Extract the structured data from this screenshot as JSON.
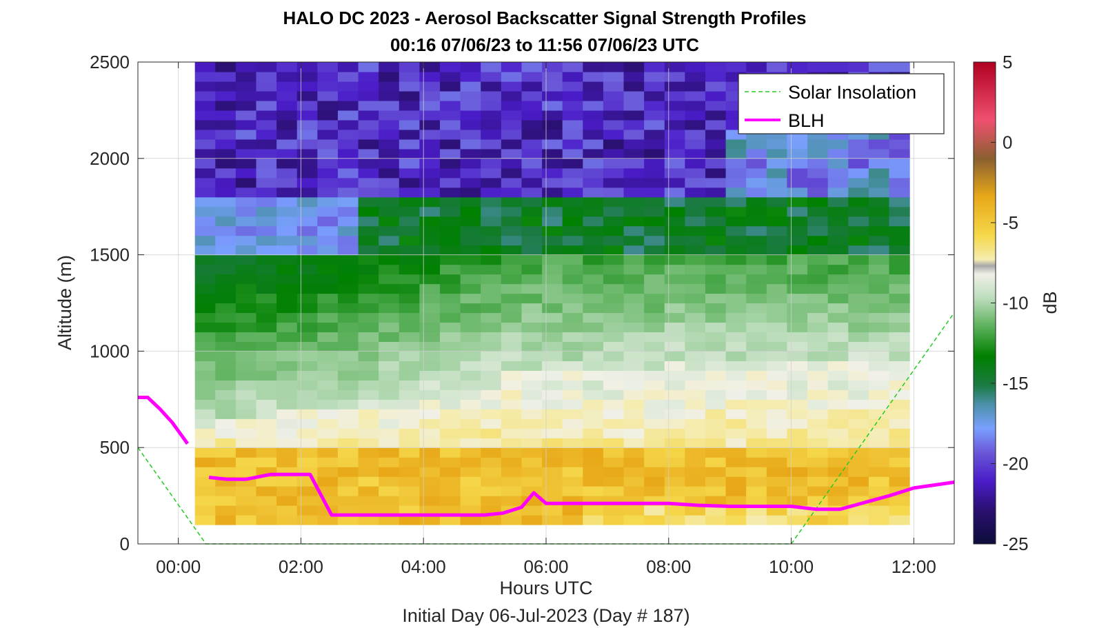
{
  "chart_data": {
    "type": "heatmap",
    "title": "HALO DC 2023 - Aerosol Backscatter Signal Strength Profiles",
    "subtitle": "00:16 07/06/23 to 11:56 07/06/23  UTC",
    "xlabel": "Hours UTC",
    "xlabel2": "Initial Day 06-Jul-2023 (Day # 187)",
    "ylabel": "Altitude (m)",
    "colorbar_label": "dB",
    "xlim": [
      -0.66,
      12.66
    ],
    "ylim": [
      0,
      2500
    ],
    "x_ticks": [
      0,
      2,
      4,
      6,
      8,
      10,
      12
    ],
    "x_tick_labels": [
      "00:00",
      "02:00",
      "04:00",
      "06:00",
      "08:00",
      "10:00",
      "12:00"
    ],
    "y_ticks": [
      0,
      500,
      1000,
      1500,
      2000,
      2500
    ],
    "y_tick_labels": [
      "0",
      "500",
      "1000",
      "1500",
      "2000",
      "2500"
    ],
    "colorbar_range": [
      -25,
      5
    ],
    "colorbar_ticks": [
      5,
      0,
      -5,
      -10,
      -15,
      -20,
      -25
    ],
    "colorbar_tick_labels": [
      "5",
      "0",
      "-5",
      "-10",
      "-15",
      "-20",
      "-25"
    ],
    "grid": true,
    "legend_position": "top-right",
    "heatmap": {
      "x_start": 0.27,
      "x_end": 11.93,
      "y_start": 100,
      "y_end": 2500,
      "n_cols": 35,
      "n_rows": 48,
      "surface_db": -6,
      "mixed_top_m": 1500,
      "residual_top_m": 1800,
      "free_troposphere_db": -21
    },
    "series": [
      {
        "name": "Solar Insolation",
        "color": "#22cc22",
        "style": "dashed",
        "x": [
          -0.66,
          0.45,
          10.0,
          12.66
        ],
        "y": [
          500,
          0,
          0,
          1200
        ]
      },
      {
        "name": "BLH",
        "color": "#ff00ff",
        "style": "solid",
        "segments": [
          {
            "x": [
              -0.66,
              -0.5,
              -0.3,
              -0.1,
              0.15
            ],
            "y": [
              760,
              760,
              700,
              630,
              520
            ]
          },
          {
            "x": [
              0.5,
              0.8,
              1.1,
              1.5,
              1.8,
              2.15,
              2.5,
              3.0,
              3.5,
              4.0,
              4.5,
              5.0,
              5.3,
              5.6,
              5.8,
              6.0,
              6.5,
              7.0,
              8.0,
              8.5,
              9.0,
              9.5,
              10.0,
              10.4,
              10.8,
              11.2,
              11.6,
              12.0,
              12.66
            ],
            "y": [
              345,
              335,
              335,
              360,
              360,
              360,
              150,
              150,
              150,
              150,
              150,
              150,
              160,
              190,
              265,
              210,
              210,
              210,
              210,
              200,
              195,
              195,
              195,
              180,
              180,
              215,
              250,
              290,
              320
            ]
          }
        ]
      }
    ]
  }
}
